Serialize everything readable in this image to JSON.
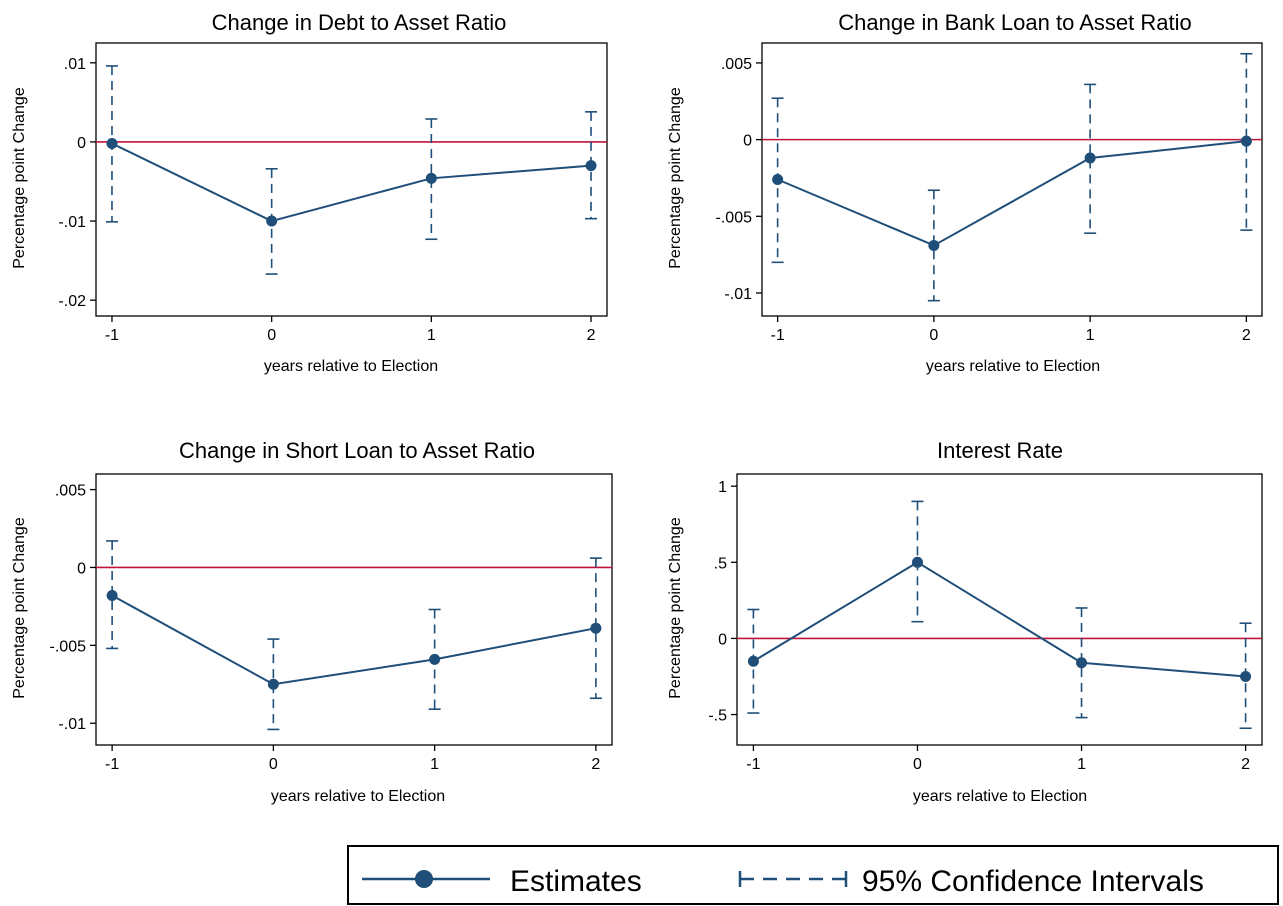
{
  "colors": {
    "series": "#1f4e79",
    "reference_line": "#c0143c",
    "axis": "#000000"
  },
  "chart_data": [
    {
      "type": "line",
      "title": "Change in Debt to Asset Ratio",
      "xlabel": "years relative to Election",
      "ylabel": "Percentage point Change",
      "x": [
        -1,
        0,
        1,
        2
      ],
      "x_ticks": [
        -1,
        0,
        1,
        2
      ],
      "x_tick_labels": [
        "-1",
        "0",
        "1",
        "2"
      ],
      "xlim": [
        -1.1,
        2.1
      ],
      "ylim": [
        -0.022,
        0.0125
      ],
      "y_ticks": [
        0.01,
        0,
        -0.01,
        -0.02
      ],
      "y_tick_labels": [
        ".01",
        "0",
        "-.01",
        "-.02"
      ],
      "reference_y": 0,
      "series": [
        {
          "name": "Estimates",
          "values": [
            -0.0002,
            -0.01,
            -0.0046,
            -0.003
          ]
        },
        {
          "name": "95% Confidence Intervals",
          "lower": [
            -0.0101,
            -0.0167,
            -0.0123,
            -0.0097
          ],
          "upper": [
            0.0096,
            -0.0034,
            0.0029,
            0.0038
          ]
        }
      ]
    },
    {
      "type": "line",
      "title": "Change in Bank Loan to Asset Ratio",
      "xlabel": "years relative to Election",
      "ylabel": "Percentage point Change",
      "x": [
        -1,
        0,
        1,
        2
      ],
      "x_ticks": [
        -1,
        0,
        1,
        2
      ],
      "x_tick_labels": [
        "-1",
        "0",
        "1",
        "2"
      ],
      "xlim": [
        -1.1,
        2.1
      ],
      "ylim": [
        -0.0115,
        0.0063
      ],
      "y_ticks": [
        0.005,
        0,
        -0.005,
        -0.01
      ],
      "y_tick_labels": [
        ".005",
        "0",
        "-.005",
        "-.01"
      ],
      "reference_y": 0,
      "series": [
        {
          "name": "Estimates",
          "values": [
            -0.0026,
            -0.0069,
            -0.0012,
            -0.0001
          ]
        },
        {
          "name": "95% Confidence Intervals",
          "lower": [
            -0.008,
            -0.0105,
            -0.0061,
            -0.0059
          ],
          "upper": [
            0.0027,
            -0.0033,
            0.0036,
            0.0056
          ]
        }
      ]
    },
    {
      "type": "line",
      "title": "Change in Short Loan to Asset Ratio",
      "xlabel": "years relative to Election",
      "ylabel": "Percentage point Change",
      "x": [
        -1,
        0,
        1,
        2
      ],
      "x_ticks": [
        -1,
        0,
        1,
        2
      ],
      "x_tick_labels": [
        "-1",
        "0",
        "1",
        "2"
      ],
      "xlim": [
        -1.1,
        2.1
      ],
      "ylim": [
        -0.0114,
        0.006
      ],
      "y_ticks": [
        0.005,
        0,
        -0.005,
        -0.01
      ],
      "y_tick_labels": [
        ".005",
        "0",
        "-.005",
        "-.01"
      ],
      "reference_y": 0,
      "series": [
        {
          "name": "Estimates",
          "values": [
            -0.0018,
            -0.0075,
            -0.0059,
            -0.0039
          ]
        },
        {
          "name": "95% Confidence Intervals",
          "lower": [
            -0.0052,
            -0.0104,
            -0.0091,
            -0.0084
          ],
          "upper": [
            0.0017,
            -0.0046,
            -0.0027,
            0.0006
          ]
        }
      ]
    },
    {
      "type": "line",
      "title": "Interest Rate",
      "xlabel": "years relative to Election",
      "ylabel": "Percentage point Change",
      "x": [
        -1,
        0,
        1,
        2
      ],
      "x_ticks": [
        -1,
        0,
        1,
        2
      ],
      "x_tick_labels": [
        "-1",
        "0",
        "1",
        "2"
      ],
      "xlim": [
        -1.1,
        2.1
      ],
      "ylim": [
        -0.7,
        1.08
      ],
      "y_ticks": [
        1,
        0.5,
        0,
        -0.5
      ],
      "y_tick_labels": [
        "1",
        ".5",
        "0",
        "-.5"
      ],
      "reference_y": 0,
      "series": [
        {
          "name": "Estimates",
          "values": [
            -0.15,
            0.5,
            -0.16,
            -0.25
          ]
        },
        {
          "name": "95% Confidence Intervals",
          "lower": [
            -0.49,
            0.11,
            -0.52,
            -0.59
          ],
          "upper": [
            0.19,
            0.9,
            0.2,
            0.1
          ]
        }
      ]
    }
  ],
  "legend": {
    "estimates_label": "Estimates",
    "ci_label": "95% Confidence Intervals"
  }
}
